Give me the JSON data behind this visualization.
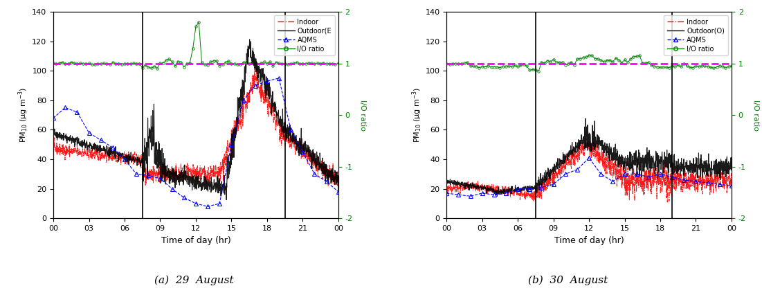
{
  "panel_a_title": "(a)  29  August",
  "panel_b_title": "(b)  30  August",
  "xlabel": "Time of day (hr)",
  "ylim_left": [
    0,
    140
  ],
  "ylim_right": [
    -2,
    2
  ],
  "yticks_left": [
    0,
    20,
    40,
    60,
    80,
    100,
    120,
    140
  ],
  "yticks_right": [
    -2,
    -1,
    0,
    1,
    2
  ],
  "xticks": [
    0,
    3,
    6,
    9,
    12,
    15,
    18,
    21,
    24
  ],
  "xticklabels": [
    "00",
    "03",
    "06",
    "09",
    "12",
    "15",
    "18",
    "21",
    "00"
  ],
  "vline_a": [
    7.5,
    19.5
  ],
  "vline_b": [
    7.5,
    19.0
  ],
  "colors": {
    "indoor": "#FF0000",
    "outdoor": "#000000",
    "aqms": "#0000FF",
    "io_ratio": "#008000",
    "hline": "#FF00FF"
  },
  "np_seed": 42,
  "aqms_t_a": [
    0,
    1,
    2,
    3,
    4,
    5,
    6,
    7,
    8,
    9,
    10,
    11,
    12,
    13,
    14,
    15,
    16,
    17,
    18,
    19,
    20,
    21,
    22,
    23,
    24
  ],
  "aqms_v_a": [
    68,
    75,
    72,
    58,
    53,
    48,
    40,
    30,
    29,
    27,
    20,
    14,
    10,
    8,
    10,
    50,
    80,
    90,
    93,
    95,
    60,
    45,
    30,
    25,
    18
  ],
  "aqms_t_b": [
    0,
    1,
    2,
    3,
    4,
    5,
    6,
    7,
    8,
    9,
    10,
    11,
    12,
    13,
    14,
    15,
    16,
    17,
    18,
    19,
    20,
    21,
    22,
    23,
    24
  ],
  "aqms_v_b": [
    17,
    16,
    15,
    17,
    16,
    17,
    20,
    20,
    21,
    23,
    30,
    33,
    41,
    30,
    25,
    30,
    30,
    28,
    30,
    28,
    26,
    25,
    24,
    23,
    22
  ]
}
